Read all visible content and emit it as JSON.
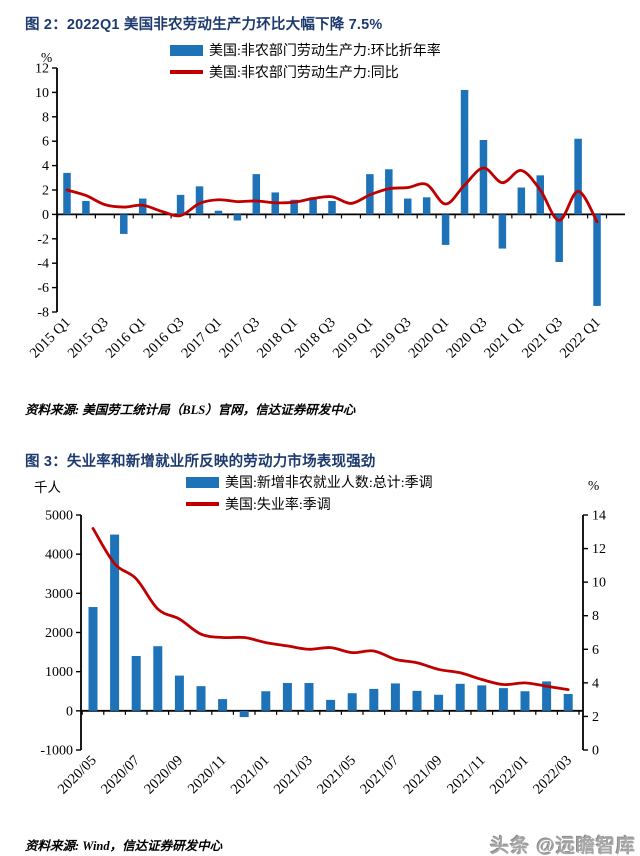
{
  "page": {
    "watermark": "头条 @远瞻智库",
    "title_color": "#1D3A6E",
    "watermark_color": "#A6A6A6"
  },
  "figure2": {
    "source": "资料来源: 美国劳工统计局（BLS）官网，信达证券研发中心"
  },
  "figure3": {
    "source": "资料来源: Wind，信达证券研发中心"
  },
  "chart_data": [
    {
      "type": "bar+line",
      "title": "图 2：2022Q1 美国非农劳动生产力环比大幅下降 7.5%",
      "ylabel": "%",
      "ylim": [
        -8,
        12
      ],
      "ytick_step": 2,
      "xtick_every": 2,
      "grid": false,
      "legend_position": "top",
      "categories": [
        "2015 Q1",
        "2015 Q2",
        "2015 Q3",
        "2015 Q4",
        "2016 Q1",
        "2016 Q2",
        "2016 Q3",
        "2016 Q4",
        "2017 Q1",
        "2017 Q2",
        "2017 Q3",
        "2017 Q4",
        "2018 Q1",
        "2018 Q2",
        "2018 Q3",
        "2018 Q4",
        "2019 Q1",
        "2019 Q2",
        "2019 Q3",
        "2019 Q4",
        "2020 Q1",
        "2020 Q2",
        "2020 Q3",
        "2020 Q4",
        "2021 Q1",
        "2021 Q2",
        "2021 Q3",
        "2021 Q4",
        "2022 Q1"
      ],
      "series": [
        {
          "name": "美国:非农部门劳动生产力:环比折年率",
          "type": "bar",
          "axis": "left",
          "color": "#1E72B8",
          "values": [
            3.4,
            1.1,
            0,
            -1.6,
            1.3,
            0,
            1.6,
            2.3,
            0.3,
            -0.5,
            3.3,
            1.8,
            1.2,
            1.4,
            1.1,
            0,
            3.3,
            3.7,
            1.3,
            1.4,
            -2.5,
            10.2,
            6.1,
            -2.8,
            2.2,
            3.2,
            -3.9,
            6.2,
            -7.5
          ]
        },
        {
          "name": "美国:非农部门劳动生产力:同比",
          "type": "line",
          "axis": "left",
          "color": "#C00000",
          "values": [
            2.0,
            1.55,
            0.8,
            0.6,
            0.75,
            0.25,
            -0.1,
            0.9,
            1.2,
            1.05,
            1.1,
            0.95,
            1.0,
            1.3,
            1.45,
            0.9,
            1.6,
            2.1,
            2.2,
            2.45,
            0.85,
            2.4,
            3.8,
            2.6,
            3.6,
            2.0,
            -0.5,
            1.9,
            -0.6
          ]
        }
      ]
    },
    {
      "type": "bar+line",
      "title": "图 3：失业率和新增就业所反映的劳动力市场表现强劲",
      "ylabel_left": "千人",
      "ylabel_right": "%",
      "ylim": [
        -1000,
        5000
      ],
      "ytick_step": 1000,
      "ylim_right": [
        0,
        14
      ],
      "ytick_step_right": 2,
      "xtick_every": 2,
      "grid": false,
      "legend_position": "top",
      "categories": [
        "2020/05",
        "2020/06",
        "2020/07",
        "2020/08",
        "2020/09",
        "2020/10",
        "2020/11",
        "2020/12",
        "2021/01",
        "2021/02",
        "2021/03",
        "2021/04",
        "2021/05",
        "2021/06",
        "2021/07",
        "2021/08",
        "2021/09",
        "2021/10",
        "2021/11",
        "2021/12",
        "2022/01",
        "2022/02",
        "2022/03"
      ],
      "series": [
        {
          "name": "美国:新增非农就业人数:总计:季调",
          "type": "bar",
          "axis": "left",
          "color": "#1E72B8",
          "values": [
            2650,
            4500,
            1400,
            1650,
            900,
            630,
            300,
            -160,
            500,
            710,
            710,
            280,
            450,
            560,
            700,
            510,
            410,
            690,
            650,
            580,
            500,
            750,
            430
          ]
        },
        {
          "name": "美国:失业率:季调",
          "type": "line",
          "axis": "right",
          "color": "#C00000",
          "values": [
            13.2,
            11.1,
            10.2,
            8.4,
            7.8,
            6.9,
            6.7,
            6.7,
            6.4,
            6.2,
            6.0,
            6.1,
            5.8,
            5.9,
            5.4,
            5.2,
            4.8,
            4.6,
            4.2,
            3.9,
            4.0,
            3.8,
            3.6
          ]
        }
      ]
    }
  ]
}
